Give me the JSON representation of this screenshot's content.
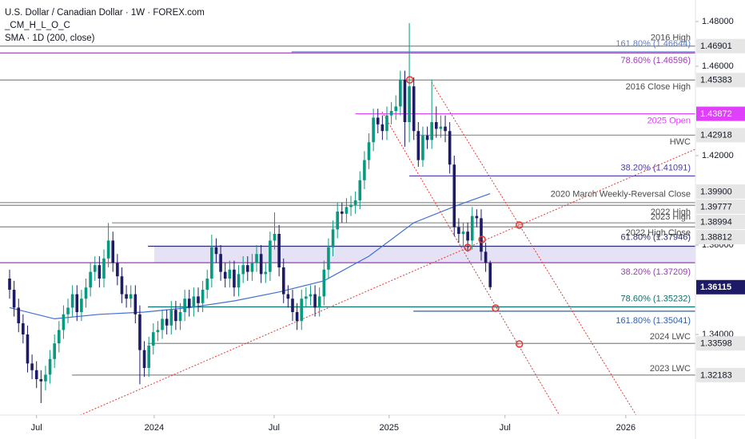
{
  "chart_data": {
    "type": "candlestick",
    "title": "U.S. Dollar / Canadian Dollar · 1W · FOREX.com",
    "indicator": "_CM_H_L_O_C",
    "up_color": "#089981",
    "down_color": "#1e1b66",
    "xlim": [
      -2.135,
      152.7
    ],
    "ylim": [
      1.30393,
      1.48964
    ],
    "xticks": [
      {
        "value": 6,
        "label": "Jul"
      },
      {
        "value": 32.2,
        "label": "2024"
      },
      {
        "value": 58.9,
        "label": "Jul"
      },
      {
        "value": 84.5,
        "label": "2025"
      },
      {
        "value": 110.3,
        "label": "Jul"
      },
      {
        "value": 137.2,
        "label": "2026"
      }
    ],
    "yticks": [
      {
        "value": 1.48,
        "label": "1.48000"
      },
      {
        "value": 1.46,
        "label": "1.46000"
      },
      {
        "value": 1.42,
        "label": "1.42000"
      },
      {
        "value": 1.38,
        "label": "1.38000"
      },
      {
        "value": 1.34,
        "label": "1.34000"
      }
    ],
    "candles": {
      "open": [
        1.365,
        1.36,
        1.352,
        1.345,
        1.34,
        1.327,
        1.324,
        1.32,
        1.319,
        1.322,
        1.329,
        1.336,
        1.342,
        1.349,
        1.352,
        1.358,
        1.35,
        1.356,
        1.361,
        1.368,
        1.371,
        1.365,
        1.374,
        1.382,
        1.372,
        1.366,
        1.358,
        1.356,
        1.358,
        1.349,
        1.333,
        1.325,
        1.335,
        1.341,
        1.342,
        1.347,
        1.344,
        1.351,
        1.346,
        1.35,
        1.356,
        1.352,
        1.357,
        1.354,
        1.36,
        1.365,
        1.379,
        1.376,
        1.368,
        1.365,
        1.369,
        1.361,
        1.367,
        1.371,
        1.368,
        1.372,
        1.376,
        1.367,
        1.368,
        1.382,
        1.385,
        1.37,
        1.358,
        1.356,
        1.35,
        1.346,
        1.356,
        1.357,
        1.358,
        1.352,
        1.357,
        1.369,
        1.379,
        1.387,
        1.395,
        1.394,
        1.397,
        1.398,
        1.4,
        1.409,
        1.418,
        1.426,
        1.437,
        1.434,
        1.431,
        1.438,
        1.44,
        1.442,
        1.454,
        1.435,
        1.451,
        1.431,
        1.418,
        1.429,
        1.427,
        1.435,
        1.432,
        1.433,
        1.431,
        1.416,
        1.388,
        1.385,
        1.386,
        1.382,
        1.393,
        1.392,
        1.377,
        1.372
      ],
      "high": [
        1.369,
        1.364,
        1.356,
        1.349,
        1.344,
        1.331,
        1.328,
        1.324,
        1.326,
        1.333,
        1.34,
        1.346,
        1.353,
        1.356,
        1.362,
        1.362,
        1.36,
        1.365,
        1.372,
        1.375,
        1.375,
        1.378,
        1.3899,
        1.386,
        1.376,
        1.37,
        1.362,
        1.362,
        1.362,
        1.353,
        1.337,
        1.339,
        1.345,
        1.346,
        1.351,
        1.351,
        1.355,
        1.355,
        1.354,
        1.36,
        1.36,
        1.361,
        1.361,
        1.364,
        1.369,
        1.3846,
        1.383,
        1.38,
        1.372,
        1.373,
        1.373,
        1.371,
        1.375,
        1.375,
        1.376,
        1.38,
        1.38,
        1.372,
        1.386,
        1.3946,
        1.389,
        1.374,
        1.362,
        1.36,
        1.354,
        1.36,
        1.361,
        1.362,
        1.362,
        1.361,
        1.373,
        1.383,
        1.391,
        1.399,
        1.399,
        1.401,
        1.402,
        1.404,
        1.413,
        1.422,
        1.43,
        1.441,
        1.441,
        1.438,
        1.442,
        1.444,
        1.447,
        1.458,
        1.458,
        1.4793,
        1.455,
        1.435,
        1.433,
        1.433,
        1.454,
        1.442,
        1.438,
        1.438,
        1.435,
        1.42,
        1.392,
        1.39,
        1.39,
        1.397,
        1.396,
        1.396,
        1.381,
        1.373
      ],
      "low": [
        1.356,
        1.348,
        1.341,
        1.336,
        1.323,
        1.32,
        1.316,
        1.3093,
        1.315,
        1.318,
        1.325,
        1.332,
        1.338,
        1.345,
        1.348,
        1.346,
        1.346,
        1.352,
        1.357,
        1.364,
        1.361,
        1.361,
        1.37,
        1.368,
        1.362,
        1.354,
        1.352,
        1.352,
        1.345,
        1.3177,
        1.321,
        1.321,
        1.331,
        1.337,
        1.338,
        1.34,
        1.34,
        1.342,
        1.342,
        1.346,
        1.348,
        1.348,
        1.35,
        1.35,
        1.356,
        1.361,
        1.372,
        1.364,
        1.361,
        1.361,
        1.357,
        1.357,
        1.363,
        1.364,
        1.364,
        1.368,
        1.363,
        1.363,
        1.364,
        1.378,
        1.366,
        1.354,
        1.352,
        1.346,
        1.342,
        1.342,
        1.352,
        1.353,
        1.348,
        1.348,
        1.353,
        1.365,
        1.375,
        1.383,
        1.39,
        1.39,
        1.393,
        1.394,
        1.396,
        1.405,
        1.414,
        1.422,
        1.43,
        1.427,
        1.427,
        1.434,
        1.436,
        1.438,
        1.424,
        1.426,
        1.427,
        1.415,
        1.415,
        1.423,
        1.423,
        1.428,
        1.428,
        1.426,
        1.412,
        1.384,
        1.381,
        1.379,
        1.377,
        1.378,
        1.388,
        1.373,
        1.368,
        1.36
      ],
      "close": [
        1.36,
        1.352,
        1.345,
        1.34,
        1.327,
        1.324,
        1.32,
        1.319,
        1.322,
        1.329,
        1.336,
        1.342,
        1.349,
        1.352,
        1.358,
        1.35,
        1.356,
        1.361,
        1.368,
        1.371,
        1.365,
        1.374,
        1.382,
        1.372,
        1.366,
        1.358,
        1.356,
        1.358,
        1.349,
        1.333,
        1.325,
        1.335,
        1.341,
        1.342,
        1.347,
        1.344,
        1.351,
        1.346,
        1.35,
        1.356,
        1.352,
        1.357,
        1.354,
        1.36,
        1.365,
        1.379,
        1.376,
        1.368,
        1.365,
        1.369,
        1.361,
        1.367,
        1.371,
        1.368,
        1.372,
        1.376,
        1.367,
        1.368,
        1.382,
        1.385,
        1.37,
        1.358,
        1.356,
        1.35,
        1.346,
        1.356,
        1.357,
        1.358,
        1.352,
        1.357,
        1.369,
        1.379,
        1.387,
        1.395,
        1.394,
        1.397,
        1.398,
        1.4,
        1.409,
        1.418,
        1.426,
        1.437,
        1.434,
        1.431,
        1.438,
        1.44,
        1.442,
        1.454,
        1.435,
        1.451,
        1.431,
        1.418,
        1.429,
        1.427,
        1.435,
        1.432,
        1.433,
        1.431,
        1.416,
        1.388,
        1.385,
        1.386,
        1.382,
        1.393,
        1.392,
        1.377,
        1.372,
        1.36115
      ]
    },
    "last_label": "1.36115",
    "last_color": "#1e1b66",
    "sma": {
      "name": "SMA · 1D (200, close)",
      "color": "#3f6fd8",
      "x": [
        0,
        10,
        20,
        30,
        40,
        50,
        60,
        70,
        80,
        90,
        100,
        107
      ],
      "values": [
        1.352,
        1.347,
        1.349,
        1.35,
        1.352,
        1.355,
        1.359,
        1.364,
        1.375,
        1.39,
        1.398,
        1.403
      ]
    },
    "levels": [
      {
        "value": 1.46901,
        "label": "2016 High",
        "color": "#888888",
        "from": -2.135,
        "tag": "1.46901"
      },
      {
        "value": 1.46644,
        "label": "161.80% (1.46644)",
        "color": "#5b7fc7",
        "from": 62.8
      },
      {
        "value": 1.46596,
        "label": "78.60% (1.46596)",
        "color": "#a03ab8",
        "from": -2.135
      },
      {
        "value": 1.45383,
        "label": "2016 Close High",
        "color": "#888888",
        "from": -2.135,
        "tag": "1.45383"
      },
      {
        "value": 1.43872,
        "label": "2025 Open",
        "color": "#e040fb",
        "from": 77,
        "tag": "1.43872"
      },
      {
        "value": 1.42918,
        "label": "HWC",
        "color": "#888888",
        "from": 90.4,
        "tag": "1.42918"
      },
      {
        "value": 1.41091,
        "label": "38.20% (1.41091)",
        "color": "#4a3ab0",
        "from": 89
      },
      {
        "value": 1.399,
        "label": "2020 March Weekly-Reversal Close",
        "color": "#888888",
        "from": -2.135,
        "tag": "1.39900"
      },
      {
        "value": 1.39777,
        "label": "2022 High",
        "color": "#888888",
        "from": -2.135,
        "tag": "1.39777"
      },
      {
        "value": 1.38994,
        "label": "2023 High",
        "color": "#888888",
        "from": 22.8,
        "tag": "1.38994"
      },
      {
        "value": 1.38812,
        "label": "2022 High Close",
        "color": "#888888",
        "from": -2.135,
        "tag": "1.38812"
      },
      {
        "value": 1.37946,
        "label": "61.80% (1.37946)",
        "color": "#2b2e6e",
        "from": 30.8
      },
      {
        "value": 1.37209,
        "label": "38.20% (1.37209)",
        "color": "#a03ab8",
        "from": -2.135
      },
      {
        "value": 1.35232,
        "label": "78.60% (1.35232)",
        "color": "#0b6e6e",
        "from": 30.8
      },
      {
        "value": 1.35041,
        "label": "161.80% (1.35041)",
        "color": "#2d5fb0",
        "from": 89.9
      },
      {
        "value": 1.33598,
        "label": "2024 LWC",
        "color": "#888888",
        "from": 30.8,
        "tag": "1.33598"
      },
      {
        "value": 1.32183,
        "label": "2023 LWC",
        "color": "#888888",
        "from": 13.9,
        "tag": "1.32183"
      }
    ],
    "zone": {
      "from": 32.2,
      "low": 1.37209,
      "high": 1.37946,
      "color": "#d9d6f0"
    },
    "trendlines": [
      {
        "x": [
          15.7,
          152.7
        ],
        "y": [
          1.3039,
          1.4229
        ],
        "color": "#e53935"
      },
      {
        "x": [
          82.9,
          122.4
        ],
        "y": [
          1.43964,
          1.30393
        ],
        "color": "#e53935"
      },
      {
        "x": [
          93.95,
          139.5
        ],
        "y": [
          1.45286,
          1.30393
        ],
        "color": "#e53935"
      }
    ],
    "markers": {
      "color": "#e53935",
      "x": [
        89.1,
        102,
        105.2,
        113.5,
        108.2,
        113.5
      ],
      "y": [
        1.45393,
        1.37893,
        1.3825,
        1.38893,
        1.35179,
        1.33571
      ]
    }
  }
}
